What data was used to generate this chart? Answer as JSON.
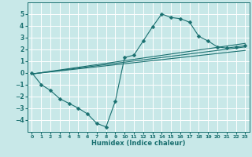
{
  "title": "",
  "xlabel": "Humidex (Indice chaleur)",
  "bg_color": "#c8e8e8",
  "grid_color": "#ffffff",
  "line_color": "#1a7070",
  "xlim": [
    -0.5,
    23.5
  ],
  "ylim": [
    -5,
    6
  ],
  "xticks": [
    0,
    1,
    2,
    3,
    4,
    5,
    6,
    7,
    8,
    9,
    10,
    11,
    12,
    13,
    14,
    15,
    16,
    17,
    18,
    19,
    20,
    21,
    22,
    23
  ],
  "yticks": [
    -4,
    -3,
    -2,
    -1,
    0,
    1,
    2,
    3,
    4,
    5
  ],
  "line1_x": [
    0,
    1,
    2,
    3,
    4,
    5,
    6,
    7,
    8,
    9,
    10,
    11,
    12,
    13,
    14,
    15,
    16,
    17,
    18,
    19,
    20,
    21,
    22,
    23
  ],
  "line1_y": [
    0,
    -1,
    -1.5,
    -2.2,
    -2.6,
    -3.0,
    -3.5,
    -4.3,
    -4.6,
    -2.4,
    1.3,
    1.5,
    2.7,
    3.9,
    5.0,
    4.7,
    4.6,
    4.3,
    3.1,
    2.7,
    2.2,
    2.1,
    2.2,
    2.3
  ],
  "line2_x": [
    0,
    23
  ],
  "line2_y": [
    -0.1,
    2.5
  ],
  "line3_x": [
    0,
    23
  ],
  "line3_y": [
    -0.1,
    2.2
  ],
  "line4_x": [
    0,
    23
  ],
  "line4_y": [
    -0.1,
    1.9
  ]
}
